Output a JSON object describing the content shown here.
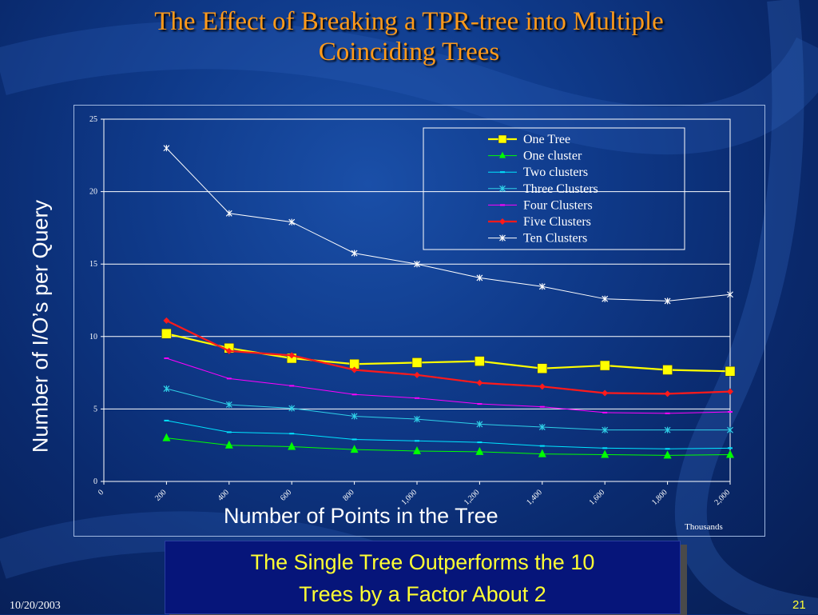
{
  "slide": {
    "title_line1": "The Effect of Breaking a TPR-tree into Multiple",
    "title_line2": "Coinciding Trees",
    "callout_line1": "The Single Tree Outperforms the 10",
    "callout_line2": "Trees by a Factor About 2",
    "date": "10/20/2003",
    "page_number": "21"
  },
  "colors": {
    "title": "#ff9a1a",
    "callout_text": "#ffff33",
    "callout_bg": "#06157a"
  },
  "chart_data": {
    "type": "line",
    "title": "",
    "xlabel": "Number of Points in the Tree",
    "ylabel": "Number of I/O’s per Query",
    "x_unit_label": "Thousands",
    "x": [
      200,
      400,
      600,
      800,
      1000,
      1200,
      1400,
      1600,
      1800,
      2000
    ],
    "x_tick_values": [
      0,
      200,
      400,
      600,
      800,
      1000,
      1200,
      1400,
      1600,
      1800,
      2000
    ],
    "x_tick_labels": [
      "0",
      "200",
      "400",
      "600",
      "800",
      "1,000",
      "1,200",
      "1,400",
      "1,600",
      "1,800",
      "2,000"
    ],
    "xlim": [
      0,
      2000
    ],
    "ylim": [
      0,
      25
    ],
    "y_ticks": [
      0,
      5,
      10,
      15,
      20,
      25
    ],
    "grid": "horizontal",
    "legend_position": "top-right",
    "series": [
      {
        "name": "One Tree",
        "color": "#ffff00",
        "marker": "square",
        "values": [
          10.2,
          9.2,
          8.5,
          8.1,
          8.2,
          8.3,
          7.8,
          8.0,
          7.7,
          7.6
        ]
      },
      {
        "name": "One cluster",
        "color": "#00ff00",
        "marker": "triangle",
        "values": [
          3.0,
          2.5,
          2.4,
          2.2,
          2.1,
          2.05,
          1.9,
          1.85,
          1.8,
          1.85
        ]
      },
      {
        "name": "Two clusters",
        "color": "#00e5ff",
        "marker": "dash",
        "values": [
          4.2,
          3.4,
          3.3,
          2.9,
          2.8,
          2.7,
          2.45,
          2.3,
          2.25,
          2.3
        ]
      },
      {
        "name": "Three Clusters",
        "color": "#2fd0e8",
        "marker": "star",
        "values": [
          6.4,
          5.3,
          5.05,
          4.5,
          4.3,
          3.95,
          3.75,
          3.55,
          3.55,
          3.55
        ]
      },
      {
        "name": "Four Clusters",
        "color": "#ff00ff",
        "marker": "dash",
        "values": [
          8.5,
          7.1,
          6.6,
          6.0,
          5.75,
          5.35,
          5.15,
          4.75,
          4.7,
          4.8
        ]
      },
      {
        "name": "Five Clusters",
        "color": "#ff1a1a",
        "marker": "diamond",
        "values": [
          11.1,
          9.0,
          8.7,
          7.7,
          7.35,
          6.8,
          6.55,
          6.1,
          6.05,
          6.2
        ]
      },
      {
        "name": "Ten Clusters",
        "color": "#ffffff",
        "marker": "star",
        "values": [
          23.0,
          18.5,
          17.9,
          15.75,
          15.0,
          14.05,
          13.45,
          12.6,
          12.45,
          12.9
        ]
      }
    ]
  }
}
